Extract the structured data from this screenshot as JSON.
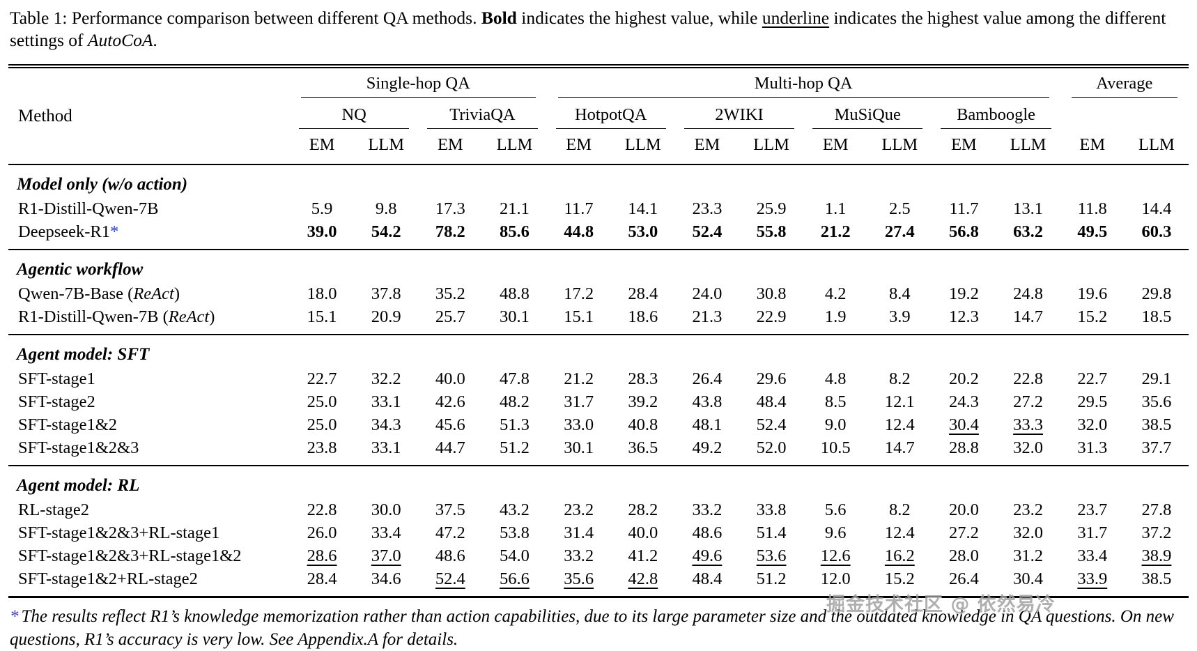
{
  "caption": {
    "part1": "Table 1: Performance comparison between different QA methods. ",
    "bold_word": "Bold",
    "part2": " indicates the highest value, while ",
    "underline_word": "underline",
    "part3": " indicates the highest value among the different settings of ",
    "italic_word": "AutoCoA",
    "part4": "."
  },
  "table": {
    "method_header": "Method",
    "groups": [
      {
        "label": "Single-hop QA",
        "datasets": [
          "NQ",
          "TriviaQA"
        ]
      },
      {
        "label": "Multi-hop QA",
        "datasets": [
          "HotpotQA",
          "2WIKI",
          "MuSiQue",
          "Bamboogle"
        ]
      },
      {
        "label": "Average",
        "datasets": []
      }
    ],
    "metric_pair": [
      "EM",
      "LLM"
    ],
    "sections": [
      {
        "title": "Model only (w/o action)",
        "rows": [
          {
            "method": "R1-Distill-Qwen-7B",
            "values": [
              "5.9",
              "9.8",
              "17.3",
              "21.1",
              "11.7",
              "14.1",
              "23.3",
              "25.9",
              "1.1",
              "2.5",
              "11.7",
              "13.1",
              "11.8",
              "14.4"
            ]
          },
          {
            "method": "Deepseek-R1",
            "star": true,
            "bold": true,
            "values": [
              "39.0",
              "54.2",
              "78.2",
              "85.6",
              "44.8",
              "53.0",
              "52.4",
              "55.8",
              "21.2",
              "27.4",
              "56.8",
              "63.2",
              "49.5",
              "60.3"
            ]
          }
        ]
      },
      {
        "title": "Agentic workflow",
        "rows": [
          {
            "method": "Qwen-7B-Base",
            "italic_paren": "ReAct",
            "values": [
              "18.0",
              "37.8",
              "35.2",
              "48.8",
              "17.2",
              "28.4",
              "24.0",
              "30.8",
              "4.2",
              "8.4",
              "19.2",
              "24.8",
              "19.6",
              "29.8"
            ]
          },
          {
            "method": "R1-Distill-Qwen-7B",
            "italic_paren": "ReAct",
            "values": [
              "15.1",
              "20.9",
              "25.7",
              "30.1",
              "15.1",
              "18.6",
              "21.3",
              "22.9",
              "1.9",
              "3.9",
              "12.3",
              "14.7",
              "15.2",
              "18.5"
            ]
          }
        ]
      },
      {
        "title": "Agent model: SFT",
        "rows": [
          {
            "method": "SFT-stage1",
            "values": [
              "22.7",
              "32.2",
              "40.0",
              "47.8",
              "21.2",
              "28.3",
              "26.4",
              "29.6",
              "4.8",
              "8.2",
              "20.2",
              "22.8",
              "22.7",
              "29.1"
            ]
          },
          {
            "method": "SFT-stage2",
            "values": [
              "25.0",
              "33.1",
              "42.6",
              "48.2",
              "31.7",
              "39.2",
              "43.8",
              "48.4",
              "8.5",
              "12.1",
              "24.3",
              "27.2",
              "29.5",
              "35.6"
            ]
          },
          {
            "method": "SFT-stage1&2",
            "underline": [
              10,
              11
            ],
            "values": [
              "25.0",
              "34.3",
              "45.6",
              "51.3",
              "33.0",
              "40.8",
              "48.1",
              "52.4",
              "9.0",
              "12.4",
              "30.4",
              "33.3",
              "32.0",
              "38.5"
            ]
          },
          {
            "method": "SFT-stage1&2&3",
            "values": [
              "23.8",
              "33.1",
              "44.7",
              "51.2",
              "30.1",
              "36.5",
              "49.2",
              "52.0",
              "10.5",
              "14.7",
              "28.8",
              "32.0",
              "31.3",
              "37.7"
            ]
          }
        ]
      },
      {
        "title": "Agent model: RL",
        "rows": [
          {
            "method": "RL-stage2",
            "values": [
              "22.8",
              "30.0",
              "37.5",
              "43.2",
              "23.2",
              "28.2",
              "33.2",
              "33.8",
              "5.6",
              "8.2",
              "20.0",
              "23.2",
              "23.7",
              "27.8"
            ]
          },
          {
            "method": "SFT-stage1&2&3+RL-stage1",
            "values": [
              "26.0",
              "33.4",
              "47.2",
              "53.8",
              "31.4",
              "40.0",
              "48.6",
              "51.4",
              "9.6",
              "12.4",
              "27.2",
              "32.0",
              "31.7",
              "37.2"
            ]
          },
          {
            "method": "SFT-stage1&2&3+RL-stage1&2",
            "underline": [
              0,
              1,
              6,
              7,
              8,
              9,
              13
            ],
            "values": [
              "28.6",
              "37.0",
              "48.6",
              "54.0",
              "33.2",
              "41.2",
              "49.6",
              "53.6",
              "12.6",
              "16.2",
              "28.0",
              "31.2",
              "33.4",
              "38.9"
            ]
          },
          {
            "method": "SFT-stage1&2+RL-stage2",
            "underline": [
              2,
              3,
              4,
              5,
              12
            ],
            "values": [
              "28.4",
              "34.6",
              "52.4",
              "56.6",
              "35.6",
              "42.8",
              "48.4",
              "51.2",
              "12.0",
              "15.2",
              "26.4",
              "30.4",
              "33.9",
              "38.5"
            ]
          }
        ]
      }
    ]
  },
  "footnote": {
    "star": "*",
    "text": "The results reflect R1’s knowledge memorization rather than action capabilities, due to its large parameter size and the outdated knowledge in QA questions. On new questions, R1’s accuracy is very low. See Appendix.A for details."
  },
  "watermark": "掘金技术社区 @ 依然易冷",
  "colors": {
    "accent_blue": "#3340d4",
    "text": "#000000",
    "watermark_gray": "#9c9c9c"
  }
}
